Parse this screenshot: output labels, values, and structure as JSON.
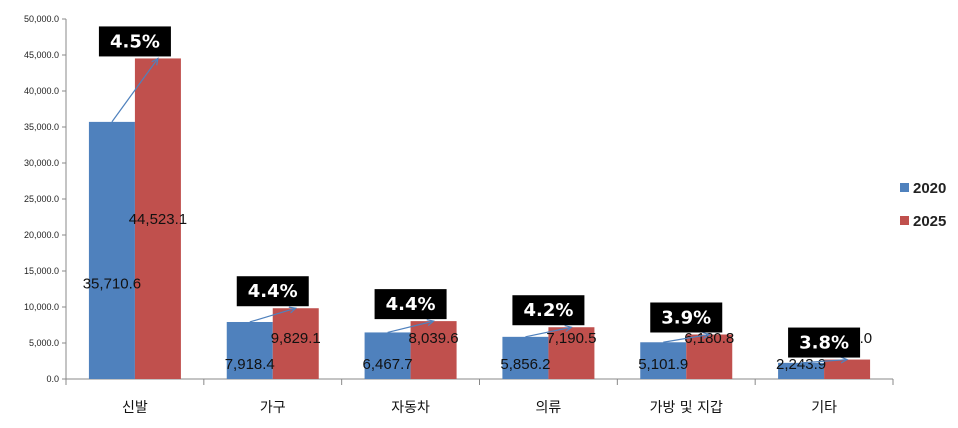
{
  "chart_data": {
    "type": "bar",
    "categories": [
      "신발",
      "가구",
      "자동차",
      "의류",
      "가방 및 지갑",
      "기타"
    ],
    "series": [
      {
        "name": "2020",
        "color": "#4f81bd",
        "values": [
          35710.6,
          7918.4,
          6467.7,
          5856.2,
          5101.9,
          2243.9
        ],
        "labels": [
          "35,710.6",
          "7,918.4",
          "6,467.7",
          "5,856.2",
          "5,101.9",
          "2,243.9"
        ]
      },
      {
        "name": "2025",
        "color": "#c0504d",
        "values": [
          44523.1,
          9829.1,
          8039.6,
          7190.5,
          6180.8,
          2701.0
        ],
        "labels": [
          "44,523.1",
          "9,829.1",
          "8,039.6",
          "7,190.5",
          "6,180.8",
          "2,701.0"
        ]
      }
    ],
    "growth_rates": [
      "4.5%",
      "4.4%",
      "4.4%",
      "4.2%",
      "3.9%",
      "3.8%"
    ],
    "y_ticks": [
      0,
      5000,
      10000,
      15000,
      20000,
      25000,
      30000,
      35000,
      40000,
      45000,
      50000
    ],
    "y_tick_labels": [
      "0.0",
      "5,000.0",
      "10,000.0",
      "15,000.0",
      "20,000.0",
      "25,000.0",
      "30,000.0",
      "35,000.0",
      "40,000.0",
      "45,000.0",
      "50,000.0"
    ],
    "ylim": [
      0,
      50000
    ],
    "title": "",
    "xlabel": "",
    "ylabel": "",
    "grid": false,
    "legend_position": "right"
  }
}
